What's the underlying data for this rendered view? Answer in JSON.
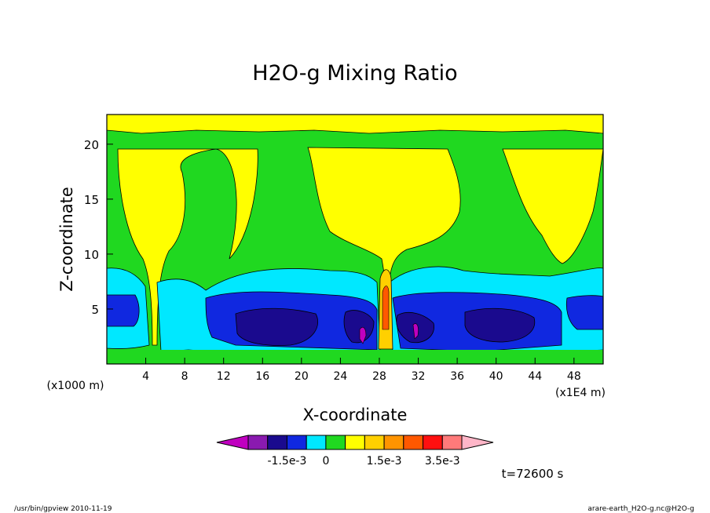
{
  "chart_data": {
    "type": "contour",
    "title": "H2O-g Mixing Ratio",
    "xlabel": "X-coordinate",
    "ylabel": "Z-coordinate",
    "x_unit": "(x1E4 m)",
    "y_unit": "(x1000 m)",
    "xlim": [
      0,
      51
    ],
    "ylim": [
      0,
      22.7
    ],
    "x_ticks": [
      "4",
      "8",
      "12",
      "16",
      "20",
      "24",
      "28",
      "32",
      "36",
      "40",
      "44",
      "48"
    ],
    "y_ticks": [
      "5",
      "10",
      "15",
      "20"
    ],
    "colorbar": {
      "levels": [
        "-1.5e-3",
        "0",
        "1.5e-3",
        "3.5e-3"
      ],
      "colors": [
        "#c000c0",
        "#8a1ab0",
        "#1a0a8e",
        "#1028e0",
        "#00e8ff",
        "#20d820",
        "#ffff00",
        "#ffd000",
        "#ff9400",
        "#ff5800",
        "#ff1010",
        "#ff7a7a",
        "#ffb6c8"
      ]
    },
    "colors": {
      "dark_blue": "#1a0a8e",
      "blue": "#1028e0",
      "cyan": "#00e8ff",
      "green": "#20d820",
      "yellow": "#ffff00",
      "magenta": "#c000c0",
      "red": "#ff1010"
    }
  },
  "time_label": "t=72600 s",
  "footer": {
    "left": "/usr/bin/gpview  2010-11-19",
    "right": "arare-earth_H2O-g.nc@H2O-g"
  }
}
